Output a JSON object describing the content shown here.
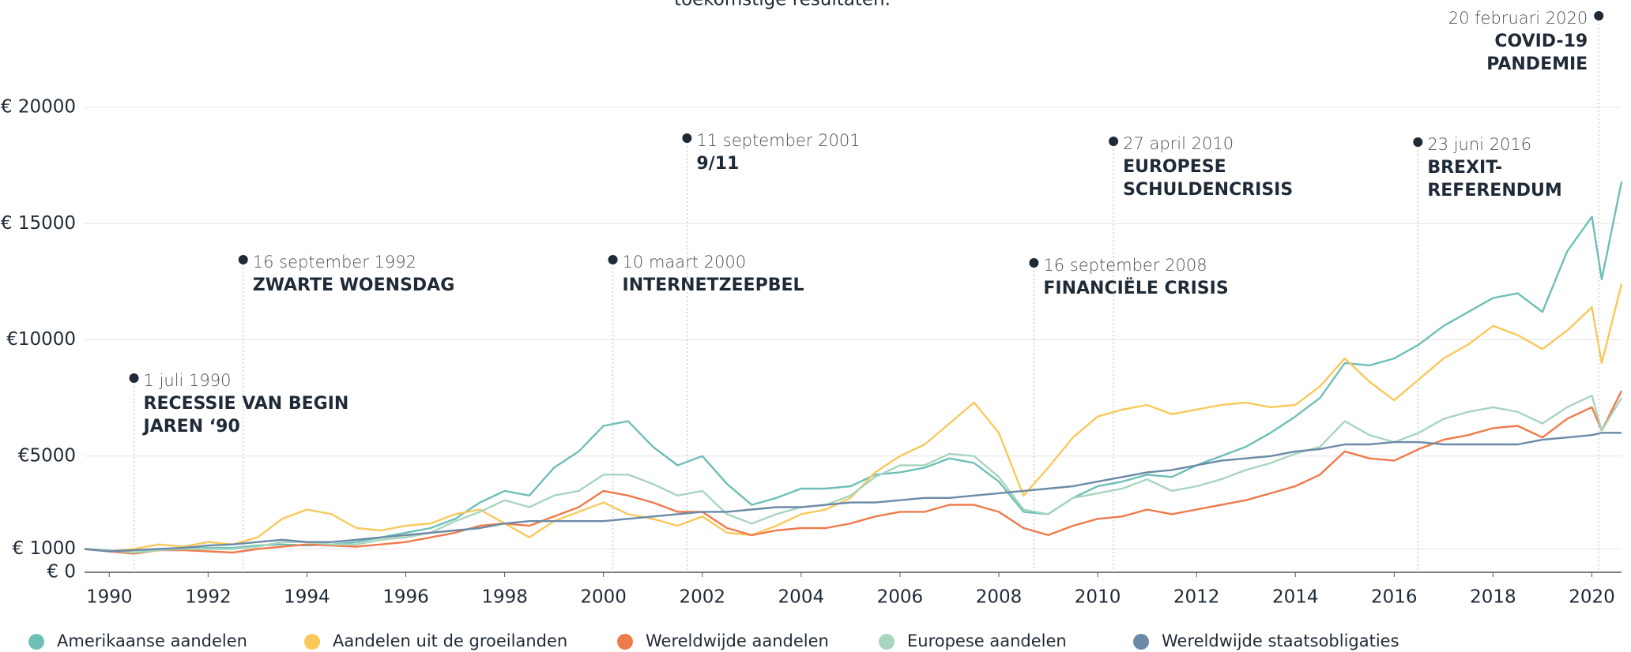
{
  "chart_data": {
    "type": "line",
    "subtitle": "toekomstige resultaten.",
    "x": [
      1989.5,
      1990,
      1990.5,
      1991,
      1991.5,
      1992,
      1992.5,
      1993,
      1993.5,
      1994,
      1994.5,
      1995,
      1995.5,
      1996,
      1996.5,
      1997,
      1997.5,
      1998,
      1998.5,
      1999,
      1999.5,
      2000,
      2000.5,
      2001,
      2001.5,
      2002,
      2002.5,
      2003,
      2003.5,
      2004,
      2004.5,
      2005,
      2005.5,
      2006,
      2006.5,
      2007,
      2007.5,
      2008,
      2008.5,
      2009,
      2009.5,
      2010,
      2010.5,
      2011,
      2011.5,
      2012,
      2012.5,
      2013,
      2013.5,
      2014,
      2014.5,
      2015,
      2015.5,
      2016,
      2016.5,
      2017,
      2017.5,
      2018,
      2018.5,
      2019,
      2019.5,
      2020,
      2020.2,
      2020.6
    ],
    "xlim": [
      1989.5,
      2020.6
    ],
    "xticks": [
      1990,
      1992,
      1994,
      1996,
      1998,
      2000,
      2002,
      2004,
      2006,
      2008,
      2010,
      2012,
      2014,
      2016,
      2018,
      2020
    ],
    "ylim": [
      0,
      20000
    ],
    "yticks": [
      {
        "value": 0,
        "label": "€ 0"
      },
      {
        "value": 1000,
        "label": "€ 1000"
      },
      {
        "value": 5000,
        "label": "€5000"
      },
      {
        "value": 10000,
        "label": "€10000"
      },
      {
        "value": 15000,
        "label": "€ 15000"
      },
      {
        "value": 20000,
        "label": "€ 20000"
      }
    ],
    "grid": true,
    "series": [
      {
        "name": "Amerikaanse aandelen",
        "color": "#6dbfb8",
        "values": [
          1000,
          900,
          850,
          950,
          1000,
          1050,
          1050,
          1150,
          1200,
          1150,
          1200,
          1300,
          1500,
          1700,
          1900,
          2300,
          3000,
          3500,
          3300,
          4500,
          5200,
          6300,
          6500,
          5400,
          4600,
          5000,
          3800,
          2900,
          3200,
          3600,
          3600,
          3700,
          4200,
          4300,
          4500,
          4900,
          4700,
          3900,
          2600,
          2500,
          3200,
          3700,
          3900,
          4200,
          4100,
          4600,
          5000,
          5400,
          6000,
          6700,
          7500,
          9000,
          8900,
          9200,
          9800,
          10600,
          11200,
          11800,
          12000,
          11200,
          13800,
          15300,
          12600,
          16800
        ]
      },
      {
        "name": "Aandelen uit de groeilanden",
        "color": "#f9c85a",
        "values": [
          1000,
          900,
          1000,
          1200,
          1100,
          1300,
          1200,
          1500,
          2300,
          2700,
          2500,
          1900,
          1800,
          2000,
          2100,
          2500,
          2700,
          2100,
          1500,
          2200,
          2600,
          3000,
          2500,
          2300,
          2000,
          2400,
          1700,
          1600,
          2000,
          2500,
          2700,
          3200,
          4300,
          5000,
          5500,
          6400,
          7300,
          6000,
          3300,
          4500,
          5800,
          6700,
          7000,
          7200,
          6800,
          7000,
          7200,
          7300,
          7100,
          7200,
          8000,
          9200,
          8200,
          7400,
          8300,
          9200,
          9800,
          10600,
          10200,
          9600,
          10400,
          11400,
          9000,
          12400
        ]
      },
      {
        "name": "Wereldwijde aandelen",
        "color": "#ef7a4c",
        "values": [
          1000,
          900,
          800,
          950,
          950,
          900,
          850,
          1000,
          1100,
          1200,
          1150,
          1100,
          1200,
          1300,
          1500,
          1700,
          2000,
          2100,
          2000,
          2400,
          2800,
          3500,
          3300,
          3000,
          2600,
          2600,
          1900,
          1600,
          1800,
          1900,
          1900,
          2100,
          2400,
          2600,
          2600,
          2900,
          2900,
          2600,
          1900,
          1600,
          2000,
          2300,
          2400,
          2700,
          2500,
          2700,
          2900,
          3100,
          3400,
          3700,
          4200,
          5200,
          4900,
          4800,
          5300,
          5700,
          5900,
          6200,
          6300,
          5800,
          6600,
          7100,
          6100,
          7800
        ]
      },
      {
        "name": "Europese aandelen",
        "color": "#a8d5bd",
        "values": [
          1000,
          950,
          850,
          950,
          1000,
          1000,
          1000,
          1100,
          1300,
          1300,
          1200,
          1200,
          1400,
          1500,
          1700,
          2200,
          2600,
          3100,
          2800,
          3300,
          3500,
          4200,
          4200,
          3800,
          3300,
          3500,
          2500,
          2100,
          2500,
          2800,
          2900,
          3300,
          4100,
          4600,
          4600,
          5100,
          5000,
          4100,
          2700,
          2500,
          3200,
          3400,
          3600,
          4000,
          3500,
          3700,
          4000,
          4400,
          4700,
          5100,
          5400,
          6500,
          5900,
          5600,
          6000,
          6600,
          6900,
          7100,
          6900,
          6400,
          7100,
          7600,
          6100,
          7500
        ]
      },
      {
        "name": "Wereldwijde staatsobligaties",
        "color": "#6b8aa8",
        "values": [
          1000,
          900,
          950,
          1000,
          1050,
          1150,
          1200,
          1300,
          1400,
          1300,
          1300,
          1400,
          1500,
          1600,
          1700,
          1800,
          1900,
          2100,
          2200,
          2200,
          2200,
          2200,
          2300,
          2400,
          2500,
          2600,
          2600,
          2700,
          2800,
          2800,
          2900,
          3000,
          3000,
          3100,
          3200,
          3200,
          3300,
          3400,
          3500,
          3600,
          3700,
          3900,
          4100,
          4300,
          4400,
          4600,
          4800,
          4900,
          5000,
          5200,
          5300,
          5500,
          5500,
          5600,
          5600,
          5500,
          5500,
          5500,
          5500,
          5700,
          5800,
          5900,
          6000,
          6000
        ]
      }
    ],
    "annotations": [
      {
        "x": 1990.5,
        "date": "1 juli 1990",
        "label": [
          "RECESSIE VAN BEGIN",
          "JAREN ‘90"
        ]
      },
      {
        "x": 1992.71,
        "date": "16 september 1992",
        "label": [
          "ZWARTE WOENSDAG"
        ]
      },
      {
        "x": 2000.19,
        "date": "10 maart 2000",
        "label": [
          "INTERNETZEEPBEL"
        ]
      },
      {
        "x": 2001.69,
        "date": "11 september 2001",
        "label": [
          "9/11"
        ]
      },
      {
        "x": 2008.71,
        "date": "16 september 2008",
        "label": [
          "FINANCIËLE CRISIS"
        ]
      },
      {
        "x": 2010.32,
        "date": "27 april 2010",
        "label": [
          "EUROPESE",
          "SCHULDENCRISIS"
        ]
      },
      {
        "x": 2016.48,
        "date": "23 juni 2016",
        "label": [
          "BREXIT-",
          "REFERENDUM"
        ]
      },
      {
        "x": 2020.14,
        "date": "20 februari 2020",
        "label": [
          "COVID-19",
          "PANDEMIE"
        ]
      }
    ]
  }
}
